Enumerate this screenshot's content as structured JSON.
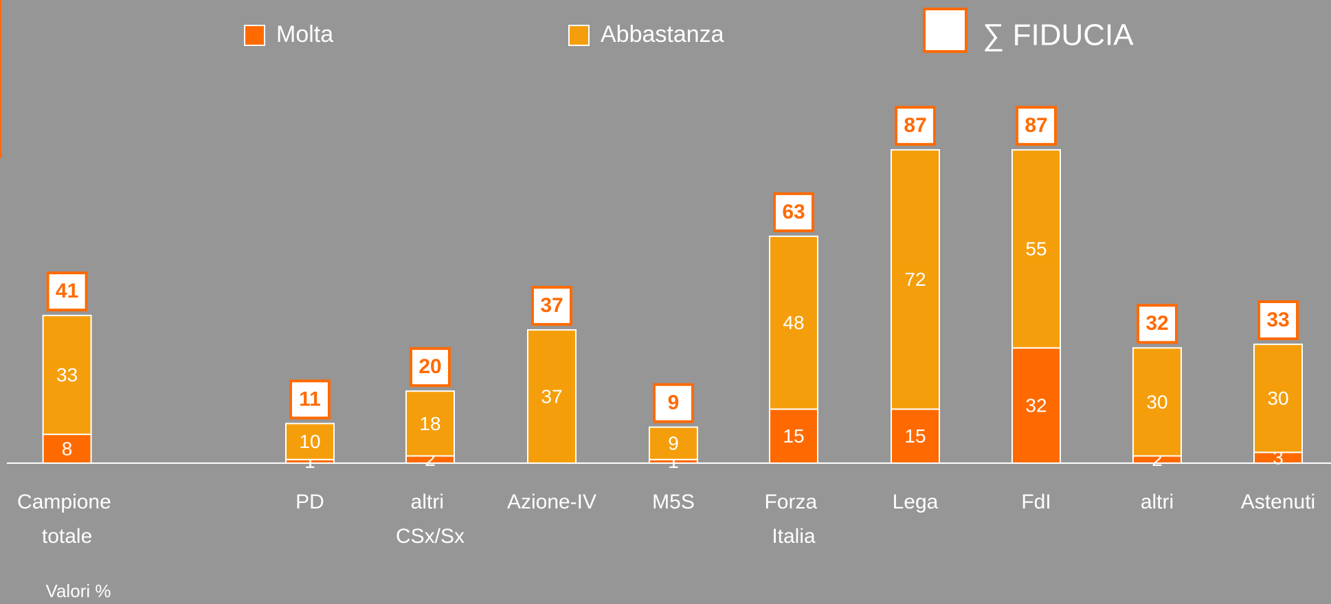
{
  "chart_data": {
    "type": "stacked-bar",
    "categories": [
      "Campione totale",
      "PD",
      "altri CSx/Sx",
      "Azione-IV",
      "M5S",
      "Forza Italia",
      "Lega",
      "FdI",
      "altri",
      "Astenuti"
    ],
    "series": [
      {
        "name": "Molta",
        "color": "#ff6a00",
        "values": [
          8,
          1,
          2,
          0,
          1,
          15,
          15,
          32,
          2,
          3
        ]
      },
      {
        "name": "Abbastanza",
        "color": "#f59e0b",
        "values": [
          33,
          10,
          18,
          37,
          9,
          48,
          72,
          55,
          30,
          30
        ]
      }
    ],
    "totals_name": "∑ FIDUCIA",
    "totals": [
      41,
      11,
      20,
      37,
      9,
      63,
      87,
      87,
      32,
      33
    ],
    "ylim": [
      0,
      100
    ],
    "note": "Valori %"
  }
}
